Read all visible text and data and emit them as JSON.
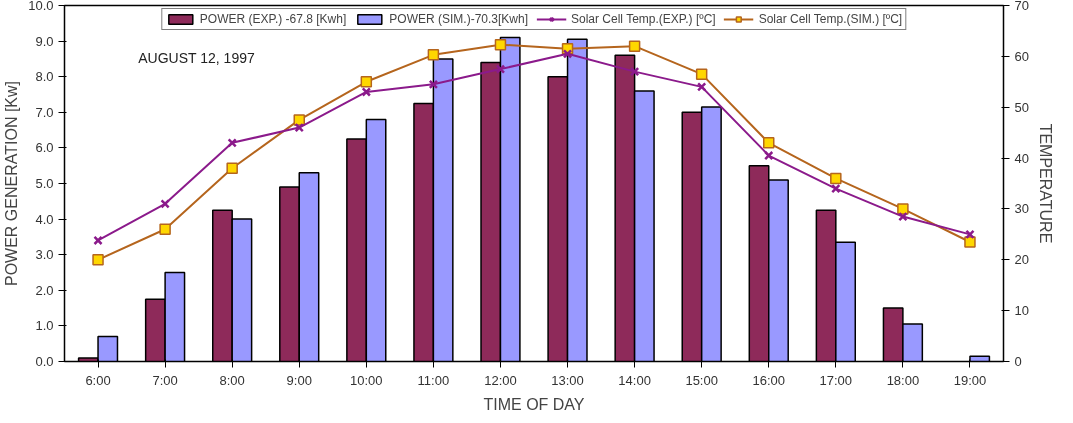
{
  "chart_data": {
    "type": "bar",
    "annotations": [
      "AUGUST 12, 1997"
    ],
    "xlabel": "TIME OF DAY",
    "ylabel": "POWER GENERATION [Kw]",
    "y2label": "TEMPERATURE",
    "categories": [
      "6:00",
      "7:00",
      "8:00",
      "9:00",
      "10:00",
      "11:00",
      "12:00",
      "13:00",
      "14:00",
      "15:00",
      "16:00",
      "17:00",
      "18:00",
      "19:00"
    ],
    "series": [
      {
        "name": "POWER (EXP.) -67.8 [Kwh]",
        "color": "#8e2a5a",
        "values": [
          0.1,
          1.75,
          4.25,
          4.9,
          6.25,
          7.25,
          8.4,
          8.0,
          8.6,
          7.0,
          5.5,
          4.25,
          1.5,
          null
        ]
      },
      {
        "name": "POWER (SIM.)-70.3[Kwh]",
        "color": "#9999ff",
        "values": [
          0.7,
          2.5,
          4.0,
          5.3,
          6.8,
          8.5,
          9.1,
          9.05,
          7.6,
          7.15,
          5.1,
          3.35,
          1.05,
          0.15
        ]
      },
      {
        "name": "Solar Cell Temp.(EXP.) [ºC]",
        "type": "line",
        "axis": "y2",
        "marker": "cross",
        "color": "#8b1a8b",
        "values": [
          23.8,
          31,
          43,
          46,
          53,
          54.5,
          57.5,
          60.5,
          57,
          54,
          40.5,
          34,
          28.5,
          25
        ]
      },
      {
        "name": "Solar Cell Temp.(SIM.) [ºC]",
        "type": "line",
        "axis": "y2",
        "marker": "square",
        "color": "#b5651d",
        "values": [
          20,
          26,
          38,
          47.5,
          55,
          60.3,
          62.3,
          61.5,
          62,
          56.5,
          43,
          36,
          30,
          23.5
        ]
      }
    ],
    "ylim": [
      0,
      10
    ],
    "yticks": [
      {
        "value": 0,
        "label": "0.0"
      },
      {
        "value": 1,
        "label": "1.0"
      },
      {
        "value": 2,
        "label": "2.0"
      },
      {
        "value": 3,
        "label": "3.0"
      },
      {
        "value": 4,
        "label": "4.0"
      },
      {
        "value": 5,
        "label": "5.0"
      },
      {
        "value": 6,
        "label": "6.0"
      },
      {
        "value": 7,
        "label": "7.0"
      },
      {
        "value": 8,
        "label": "8.0"
      },
      {
        "value": 9,
        "label": "9.0"
      },
      {
        "value": 10,
        "label": "10.0"
      }
    ],
    "y2lim": [
      0,
      70
    ],
    "y2ticks": [
      0,
      10,
      20,
      30,
      40,
      50,
      60,
      70
    ],
    "grid": false,
    "legend": "top"
  }
}
